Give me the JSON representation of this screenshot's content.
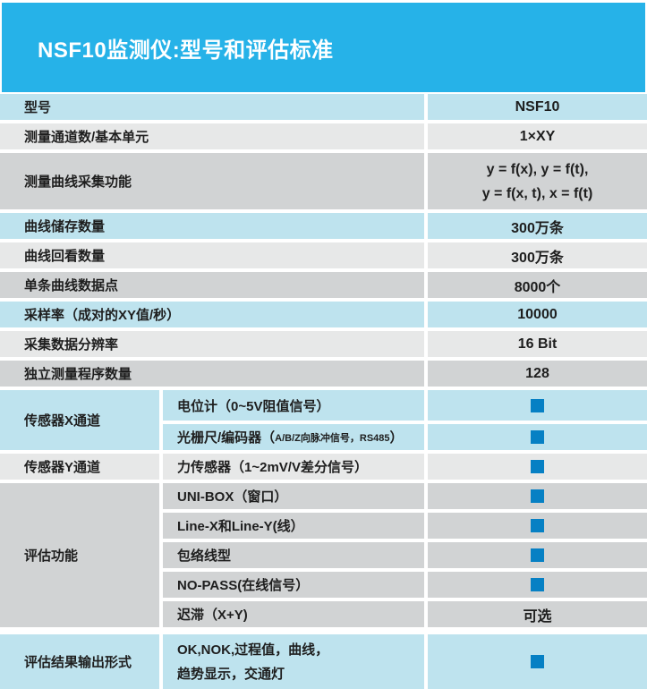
{
  "header": {
    "title": "NSF10监测仪:型号和评估标准"
  },
  "colors": {
    "header_bg": "#26b2e8",
    "row_blue": "#bee3ee",
    "row_gray": "#e7e8e8",
    "row_dark": "#d1d3d4",
    "square_blue": "#0680c4",
    "text": "#1e1e1e"
  },
  "table": {
    "square_meaning": "included-feature-marker",
    "sections": [
      {
        "type": "simple",
        "tone": "blue",
        "label": "型号",
        "h": 29,
        "value": {
          "kind": "text",
          "text": "NSF10"
        }
      },
      {
        "type": "simple",
        "tone": "gray",
        "label": "测量通道数/基本单元",
        "h": 29,
        "value": {
          "kind": "text",
          "text": "1×XY"
        }
      },
      {
        "type": "simple",
        "tone": "dark",
        "label": "测量曲线采集功能",
        "h": 63,
        "value": {
          "kind": "lines",
          "lines": [
            "y = f(x), y = f(t),",
            "y = f(x, t), x = f(t)"
          ]
        }
      },
      {
        "type": "simple",
        "tone": "blue",
        "label": "曲线储存数量",
        "h": 29,
        "value": {
          "kind": "text",
          "text": "300万条"
        }
      },
      {
        "type": "simple",
        "tone": "gray",
        "label": "曲线回看数量",
        "h": 29,
        "value": {
          "kind": "text",
          "text": "300万条"
        }
      },
      {
        "type": "simple",
        "tone": "dark",
        "label": "单条曲线数据点",
        "h": 29,
        "value": {
          "kind": "text",
          "text": "8000个"
        }
      },
      {
        "type": "simple",
        "tone": "blue",
        "label": "采样率（成对的XY值/秒）",
        "h": 29,
        "value": {
          "kind": "text",
          "text": "10000"
        }
      },
      {
        "type": "simple",
        "tone": "gray",
        "label": "采集数据分辨率",
        "h": 29,
        "value": {
          "kind": "text",
          "text": "16 Bit"
        }
      },
      {
        "type": "simple",
        "tone": "dark",
        "label": "独立测量程序数量",
        "h": 29,
        "value": {
          "kind": "text",
          "text": "128"
        }
      },
      {
        "type": "group",
        "tone": "blue",
        "label": "传感器X通道",
        "items": [
          {
            "h": 34,
            "parts": [
              {
                "text": "电位计（0~5V阻值信号）"
              }
            ],
            "value": {
              "kind": "square"
            }
          },
          {
            "h": 29,
            "parts": [
              {
                "text": "光栅尺/编码器（"
              },
              {
                "text": "A/B/Z向脉冲信号，RS485",
                "small": true
              },
              {
                "text": "）"
              }
            ],
            "value": {
              "kind": "square"
            }
          }
        ]
      },
      {
        "type": "group",
        "tone": "gray",
        "label": "传感器Y通道",
        "items": [
          {
            "h": 29,
            "parts": [
              {
                "text": "力传感器（1~2mV/V差分信号）"
              }
            ],
            "value": {
              "kind": "square"
            }
          }
        ]
      },
      {
        "type": "group",
        "tone": "dark",
        "label": "评估功能",
        "items": [
          {
            "h": 29,
            "parts": [
              {
                "text": "UNI-BOX（窗口）"
              }
            ],
            "value": {
              "kind": "square"
            }
          },
          {
            "h": 29,
            "parts": [
              {
                "text": "Line-X和Line-Y(线）"
              }
            ],
            "value": {
              "kind": "square"
            }
          },
          {
            "h": 29,
            "parts": [
              {
                "text": "包络线型"
              }
            ],
            "value": {
              "kind": "square"
            }
          },
          {
            "h": 29,
            "parts": [
              {
                "text": "NO-PASS(在线信号）"
              }
            ],
            "value": {
              "kind": "square"
            }
          },
          {
            "h": 29,
            "parts": [
              {
                "text": "迟滞（X+Y)"
              }
            ],
            "value": {
              "kind": "text",
              "text": "可选"
            }
          }
        ]
      },
      {
        "type": "group",
        "tone": "blue",
        "label": "评估结果输出形式",
        "gap_before": true,
        "items": [
          {
            "h": 61,
            "lines": [
              "OK,NOK,过程值，曲线，",
              "趋势显示，交通灯"
            ],
            "value": {
              "kind": "square"
            }
          }
        ]
      }
    ]
  }
}
